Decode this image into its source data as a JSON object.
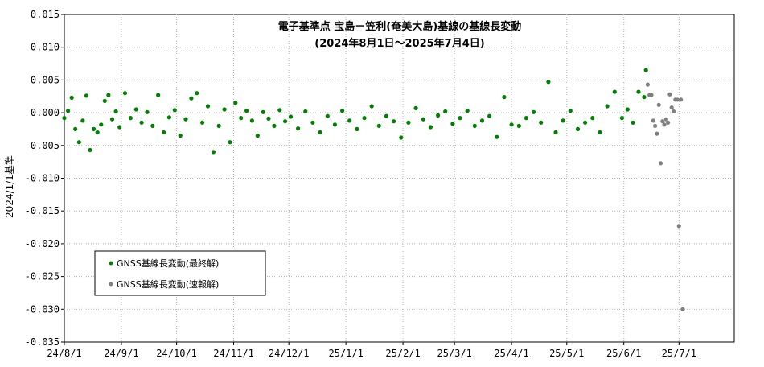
{
  "chart_data": {
    "type": "scatter",
    "title": "電子基準点 宝島－笠利(奄美大島)基線の基線長変動",
    "subtitle": "(2024年8月1日～2025年7月4日)",
    "ylabel": "2024/1/1基準",
    "xlabel": "",
    "ylim": [
      -0.035,
      0.015
    ],
    "yticks": [
      0.015,
      0.01,
      0.005,
      0.0,
      -0.005,
      -0.01,
      -0.015,
      -0.02,
      -0.025,
      -0.03,
      -0.035
    ],
    "ytick_labels": [
      "0.015",
      "0.010",
      "0.005",
      "0.000",
      "-0.005",
      "-0.010",
      "-0.015",
      "-0.020",
      "-0.025",
      "-0.030",
      "-0.035"
    ],
    "xlim": [
      "2024-08-01",
      "2025-07-31"
    ],
    "xticks": [
      "2024-08-01",
      "2024-09-01",
      "2024-10-01",
      "2024-11-01",
      "2024-12-01",
      "2025-01-01",
      "2025-02-01",
      "2025-03-01",
      "2025-04-01",
      "2025-05-01",
      "2025-06-01",
      "2025-07-01"
    ],
    "xtick_labels": [
      "24/8/1",
      "24/9/1",
      "24/10/1",
      "24/11/1",
      "24/12/1",
      "25/1/1",
      "25/2/1",
      "25/3/1",
      "25/4/1",
      "25/5/1",
      "25/6/1",
      "25/7/1"
    ],
    "grid": true,
    "legend_position": "bottom-left",
    "series": [
      {
        "name": "GNSS基線長変動(最終解)",
        "color": "#008000",
        "x": [
          "2024-08-01",
          "2024-08-03",
          "2024-08-05",
          "2024-08-07",
          "2024-08-09",
          "2024-08-11",
          "2024-08-13",
          "2024-08-15",
          "2024-08-17",
          "2024-08-19",
          "2024-08-21",
          "2024-08-23",
          "2024-08-25",
          "2024-08-27",
          "2024-08-29",
          "2024-08-31",
          "2024-09-03",
          "2024-09-06",
          "2024-09-09",
          "2024-09-12",
          "2024-09-15",
          "2024-09-18",
          "2024-09-21",
          "2024-09-24",
          "2024-09-27",
          "2024-09-30",
          "2024-10-03",
          "2024-10-06",
          "2024-10-09",
          "2024-10-12",
          "2024-10-15",
          "2024-10-18",
          "2024-10-21",
          "2024-10-24",
          "2024-10-27",
          "2024-10-30",
          "2024-11-02",
          "2024-11-05",
          "2024-11-08",
          "2024-11-11",
          "2024-11-14",
          "2024-11-17",
          "2024-11-20",
          "2024-11-23",
          "2024-11-26",
          "2024-11-29",
          "2024-12-02",
          "2024-12-06",
          "2024-12-10",
          "2024-12-14",
          "2024-12-18",
          "2024-12-22",
          "2024-12-26",
          "2024-12-30",
          "2025-01-03",
          "2025-01-07",
          "2025-01-11",
          "2025-01-15",
          "2025-01-19",
          "2025-01-23",
          "2025-01-27",
          "2025-01-31",
          "2025-02-04",
          "2025-02-08",
          "2025-02-12",
          "2025-02-16",
          "2025-02-20",
          "2025-02-24",
          "2025-02-28",
          "2025-03-04",
          "2025-03-08",
          "2025-03-12",
          "2025-03-16",
          "2025-03-20",
          "2025-03-24",
          "2025-03-28",
          "2025-04-01",
          "2025-04-05",
          "2025-04-09",
          "2025-04-13",
          "2025-04-17",
          "2025-04-21",
          "2025-04-25",
          "2025-04-29",
          "2025-05-03",
          "2025-05-07",
          "2025-05-11",
          "2025-05-15",
          "2025-05-19",
          "2025-05-23",
          "2025-05-27",
          "2025-05-31",
          "2025-06-03",
          "2025-06-06",
          "2025-06-09",
          "2025-06-12",
          "2025-06-13"
        ],
        "y": [
          -0.0008,
          0.0003,
          0.0023,
          -0.0025,
          -0.0045,
          -0.0012,
          0.0026,
          -0.0057,
          -0.0025,
          -0.003,
          -0.0018,
          0.0018,
          0.0027,
          -0.001,
          0.0002,
          -0.0022,
          0.003,
          -0.0008,
          0.0005,
          -0.0015,
          0.0001,
          -0.002,
          0.0027,
          -0.003,
          -0.0007,
          0.0004,
          -0.0035,
          -0.001,
          0.0022,
          0.003,
          -0.0015,
          0.001,
          -0.006,
          -0.002,
          0.0005,
          -0.0045,
          0.0015,
          -0.0008,
          0.0003,
          -0.0012,
          -0.0035,
          0.0001,
          -0.0009,
          -0.002,
          0.0004,
          -0.0013,
          -0.0006,
          -0.0024,
          0.0002,
          -0.0015,
          -0.003,
          -0.0005,
          -0.0018,
          0.0003,
          -0.0012,
          -0.0025,
          -0.0008,
          0.001,
          -0.002,
          -0.0005,
          -0.0013,
          -0.0038,
          -0.0015,
          0.0007,
          -0.001,
          -0.0022,
          -0.0004,
          0.0002,
          -0.0017,
          -0.0008,
          0.0003,
          -0.002,
          -0.0012,
          -0.0005,
          -0.0037,
          0.0024,
          -0.0018,
          -0.002,
          -0.0008,
          0.0001,
          -0.0015,
          0.0047,
          -0.003,
          -0.0012,
          0.0003,
          -0.0025,
          -0.0015,
          -0.0008,
          -0.003,
          0.001,
          0.0032,
          -0.0008,
          0.0005,
          -0.0015,
          0.0032,
          0.0024,
          0.0065
        ]
      },
      {
        "name": "GNSS基線長変動(速報解)",
        "color": "#808080",
        "x": [
          "2025-06-14",
          "2025-06-15",
          "2025-06-16",
          "2025-06-17",
          "2025-06-18",
          "2025-06-19",
          "2025-06-20",
          "2025-06-21",
          "2025-06-22",
          "2025-06-23",
          "2025-06-24",
          "2025-06-25",
          "2025-06-26",
          "2025-06-27",
          "2025-06-28",
          "2025-06-29",
          "2025-06-30",
          "2025-07-01",
          "2025-07-02",
          "2025-07-03"
        ],
        "y": [
          0.0043,
          0.0027,
          0.0027,
          -0.0012,
          -0.002,
          -0.0032,
          0.0012,
          -0.0077,
          -0.0013,
          -0.0018,
          -0.001,
          -0.0015,
          0.0028,
          0.0008,
          0.0002,
          0.002,
          0.002,
          -0.0173,
          0.002,
          -0.03
        ]
      }
    ]
  }
}
